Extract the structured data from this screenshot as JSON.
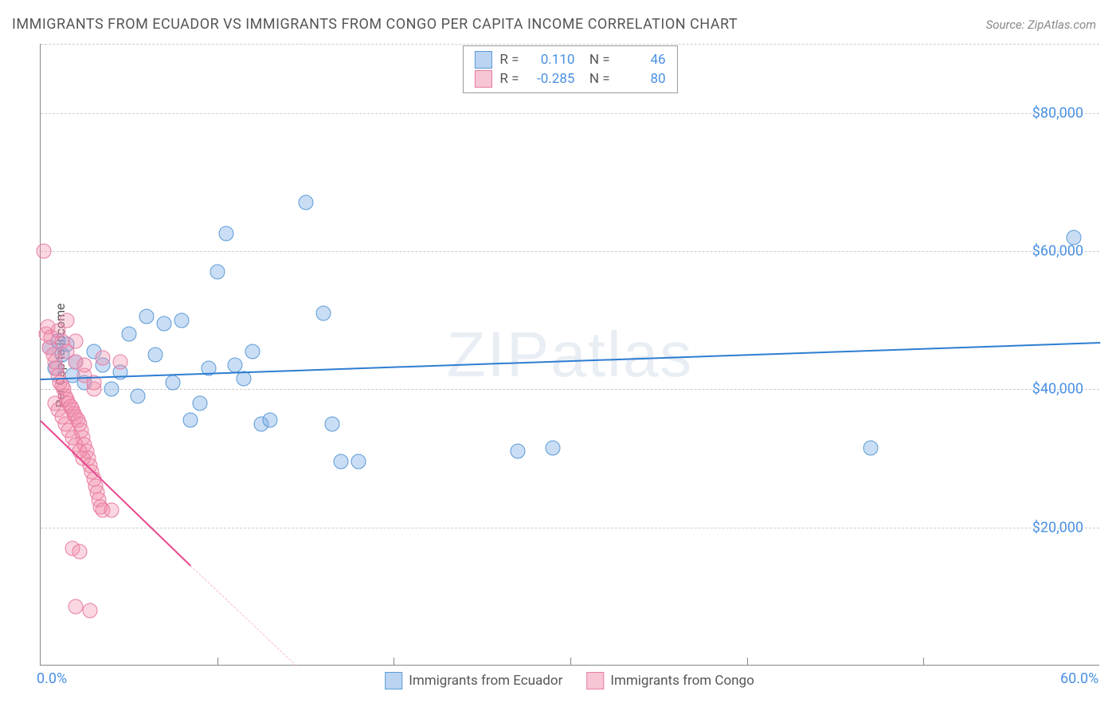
{
  "title": "IMMIGRANTS FROM ECUADOR VS IMMIGRANTS FROM CONGO PER CAPITA INCOME CORRELATION CHART",
  "source_label": "Source: ",
  "source_name": "ZipAtlas.com",
  "ylabel": "Per Capita Income",
  "watermark": "ZIPatlas",
  "chart": {
    "type": "scatter",
    "xlim": [
      0,
      60
    ],
    "ylim": [
      0,
      90000
    ],
    "x_unit": "%",
    "y_unit": "$",
    "yticks": [
      20000,
      40000,
      60000,
      80000
    ],
    "ytick_labels": [
      "$20,000",
      "$40,000",
      "$60,000",
      "$80,000"
    ],
    "xticks": [
      0,
      60
    ],
    "xtick_labels": [
      "0.0%",
      "60.0%"
    ],
    "minor_xticks": [
      10,
      20,
      30,
      40,
      50
    ],
    "grid_color": "#cccccc",
    "background_color": "#ffffff",
    "series": [
      {
        "name": "Immigrants from Ecuador",
        "color_fill": "rgba(120,170,230,0.4)",
        "color_stroke": "#5b9bd5",
        "trend_color": "#2d7dd2",
        "marker_size": 19,
        "R": "0.110",
        "N": "46",
        "trend": {
          "x1": 0,
          "y1": 41500,
          "x2": 60,
          "y2": 46800
        },
        "points": [
          [
            0.5,
            46000
          ],
          [
            0.8,
            43000
          ],
          [
            1.0,
            47000
          ],
          [
            1.2,
            45000
          ],
          [
            1.5,
            46500
          ],
          [
            1.8,
            42000
          ],
          [
            2.0,
            44000
          ],
          [
            2.5,
            41000
          ],
          [
            3.0,
            45500
          ],
          [
            3.5,
            43500
          ],
          [
            4.0,
            40000
          ],
          [
            4.5,
            42500
          ],
          [
            5.0,
            48000
          ],
          [
            5.5,
            39000
          ],
          [
            6.0,
            50500
          ],
          [
            6.5,
            45000
          ],
          [
            7.0,
            49500
          ],
          [
            7.5,
            41000
          ],
          [
            8.0,
            50000
          ],
          [
            8.5,
            35500
          ],
          [
            9.0,
            38000
          ],
          [
            9.5,
            43000
          ],
          [
            10.0,
            57000
          ],
          [
            10.5,
            62500
          ],
          [
            11.0,
            43500
          ],
          [
            11.5,
            41500
          ],
          [
            12.0,
            45500
          ],
          [
            12.5,
            35000
          ],
          [
            13.0,
            35500
          ],
          [
            15.0,
            67000
          ],
          [
            16.0,
            51000
          ],
          [
            16.5,
            35000
          ],
          [
            17.0,
            29500
          ],
          [
            18.0,
            29500
          ],
          [
            27.0,
            31000
          ],
          [
            29.0,
            31500
          ],
          [
            47.0,
            31500
          ],
          [
            58.5,
            62000
          ]
        ]
      },
      {
        "name": "Immigrants from Congo",
        "color_fill": "rgba(240,140,170,0.35)",
        "color_stroke": "#e87da3",
        "trend_color": "#e8478e",
        "marker_size": 19,
        "R": "-0.285",
        "N": "80",
        "trend": {
          "x1": 0,
          "y1": 35500,
          "x2": 8.5,
          "y2": 14500
        },
        "trend_dash": {
          "x1": 8.5,
          "y1": 14500,
          "x2": 14.5,
          "y2": 0
        },
        "points": [
          [
            0.2,
            60000
          ],
          [
            0.3,
            48000
          ],
          [
            0.4,
            49000
          ],
          [
            0.5,
            46000
          ],
          [
            0.6,
            47500
          ],
          [
            0.7,
            45000
          ],
          [
            0.8,
            44000
          ],
          [
            0.9,
            43000
          ],
          [
            1.0,
            42000
          ],
          [
            1.1,
            41000
          ],
          [
            1.2,
            40500
          ],
          [
            1.3,
            40000
          ],
          [
            1.4,
            39000
          ],
          [
            1.5,
            38500
          ],
          [
            1.6,
            38000
          ],
          [
            1.7,
            37500
          ],
          [
            1.8,
            37000
          ],
          [
            1.9,
            36500
          ],
          [
            2.0,
            36000
          ],
          [
            2.1,
            35500
          ],
          [
            2.2,
            35000
          ],
          [
            2.3,
            34000
          ],
          [
            2.4,
            33000
          ],
          [
            2.5,
            32000
          ],
          [
            2.6,
            31000
          ],
          [
            2.7,
            30000
          ],
          [
            2.8,
            29000
          ],
          [
            2.9,
            28000
          ],
          [
            3.0,
            27000
          ],
          [
            3.1,
            26000
          ],
          [
            3.2,
            25000
          ],
          [
            3.3,
            24000
          ],
          [
            3.4,
            23000
          ],
          [
            1.0,
            48500
          ],
          [
            1.2,
            47000
          ],
          [
            1.5,
            45500
          ],
          [
            2.0,
            44000
          ],
          [
            2.5,
            42000
          ],
          [
            3.0,
            40000
          ],
          [
            3.5,
            22500
          ],
          [
            4.0,
            22500
          ],
          [
            1.8,
            17000
          ],
          [
            2.2,
            16500
          ],
          [
            2.0,
            8500
          ],
          [
            2.8,
            8000
          ],
          [
            1.5,
            50000
          ],
          [
            2.0,
            47000
          ],
          [
            2.5,
            43500
          ],
          [
            3.0,
            41000
          ],
          [
            0.8,
            38000
          ],
          [
            1.0,
            37000
          ],
          [
            1.2,
            36000
          ],
          [
            1.4,
            35000
          ],
          [
            1.6,
            34000
          ],
          [
            1.8,
            33000
          ],
          [
            2.0,
            32000
          ],
          [
            2.2,
            31000
          ],
          [
            2.4,
            30000
          ],
          [
            3.5,
            44500
          ],
          [
            4.5,
            44000
          ]
        ]
      }
    ]
  },
  "legend_top": {
    "rows": [
      {
        "swatch": "blue",
        "r_label": "R =",
        "r_val": "0.110",
        "n_label": "N =",
        "n_val": "46"
      },
      {
        "swatch": "pink",
        "r_label": "R =",
        "r_val": "-0.285",
        "n_label": "N =",
        "n_val": "80"
      }
    ]
  },
  "legend_bottom": [
    {
      "swatch": "blue",
      "label": "Immigrants from Ecuador"
    },
    {
      "swatch": "pink",
      "label": "Immigrants from Congo"
    }
  ]
}
